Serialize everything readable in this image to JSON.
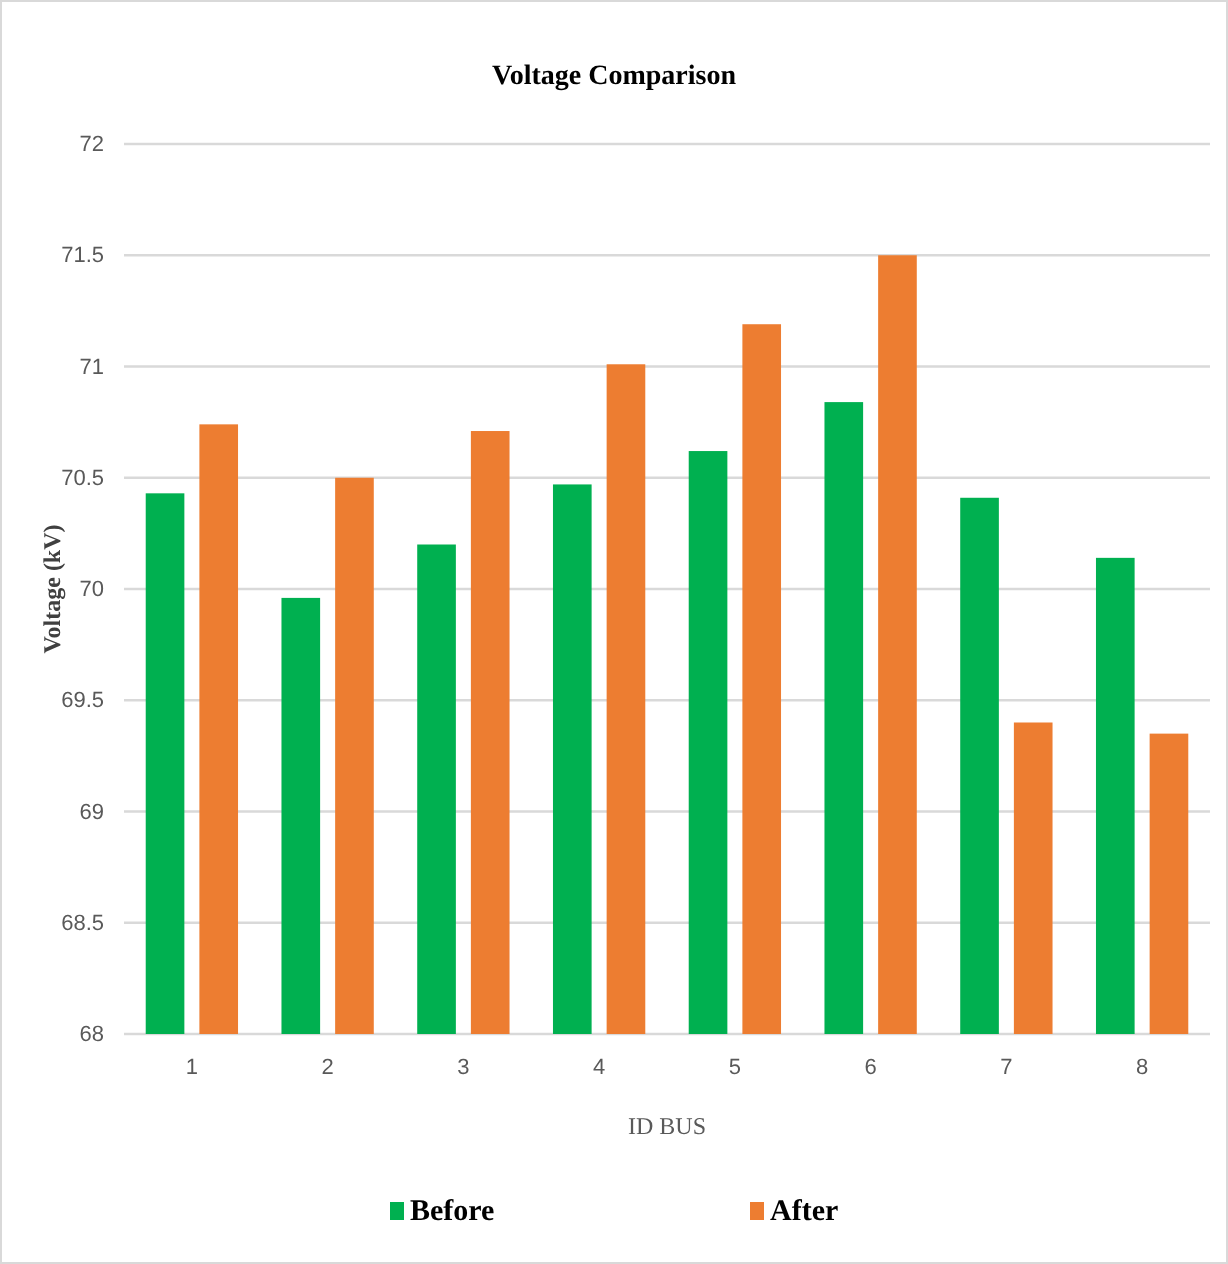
{
  "chart_data": {
    "type": "bar",
    "title": "Voltage Comparison",
    "xlabel": "ID BUS",
    "ylabel": "Voltage (kV)",
    "categories": [
      "1",
      "2",
      "3",
      "4",
      "5",
      "6",
      "7",
      "8"
    ],
    "series": [
      {
        "name": "Before",
        "color": "#00b050",
        "values": [
          70.43,
          69.96,
          70.2,
          70.47,
          70.62,
          70.84,
          70.41,
          70.14
        ]
      },
      {
        "name": "After",
        "color": "#ed7d31",
        "values": [
          70.74,
          70.5,
          70.71,
          71.01,
          71.19,
          71.5,
          69.4,
          69.35
        ]
      }
    ],
    "ylim": [
      68,
      72
    ],
    "yticks": [
      68,
      68.5,
      69,
      69.5,
      70,
      70.5,
      71,
      71.5,
      72
    ],
    "grid": "y",
    "legend": "bottom"
  }
}
